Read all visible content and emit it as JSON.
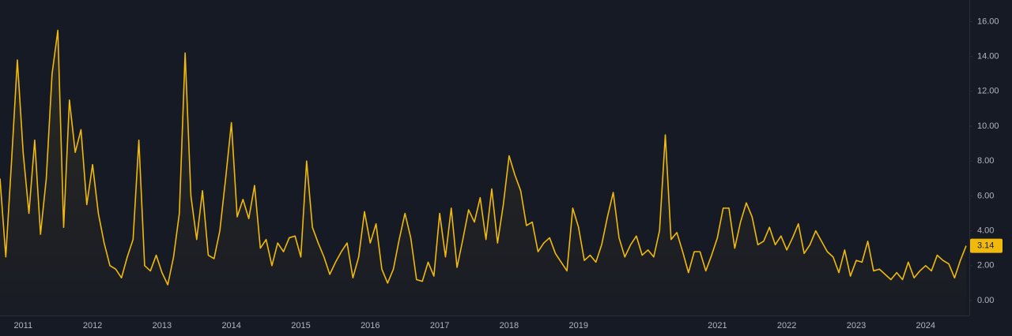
{
  "chart_data": {
    "type": "line",
    "categories": [
      null,
      null,
      null,
      null,
      "2011",
      null,
      null,
      null,
      null,
      null,
      null,
      null,
      null,
      null,
      null,
      null,
      "2012",
      null,
      null,
      null,
      null,
      null,
      null,
      null,
      null,
      null,
      null,
      null,
      "2013",
      null,
      null,
      null,
      null,
      null,
      null,
      null,
      null,
      null,
      null,
      null,
      "2014",
      null,
      null,
      null,
      null,
      null,
      null,
      null,
      null,
      null,
      null,
      null,
      "2015",
      null,
      null,
      null,
      null,
      null,
      null,
      null,
      null,
      null,
      null,
      null,
      "2016",
      null,
      null,
      null,
      null,
      null,
      null,
      null,
      null,
      null,
      null,
      null,
      "2017",
      null,
      null,
      null,
      null,
      null,
      null,
      null,
      null,
      null,
      null,
      null,
      "2018",
      null,
      null,
      null,
      null,
      null,
      null,
      null,
      null,
      null,
      null,
      null,
      "2019",
      null,
      null,
      null,
      null,
      null,
      null,
      null,
      null,
      null,
      null,
      null,
      null,
      null,
      null,
      null,
      null,
      null,
      null,
      null,
      null,
      null,
      null,
      null,
      "2021",
      null,
      null,
      null,
      null,
      null,
      null,
      null,
      null,
      null,
      null,
      null,
      "2022",
      null,
      null,
      null,
      null,
      null,
      null,
      null,
      null,
      null,
      null,
      null,
      "2023",
      null,
      null,
      null,
      null,
      null,
      null,
      null,
      null,
      null,
      null,
      null,
      "2024",
      null,
      null,
      null,
      null,
      null,
      null,
      null
    ],
    "values": [
      7.0,
      2.5,
      8,
      13.8,
      8.5,
      5,
      9.2,
      3.8,
      7,
      13,
      15.5,
      4.2,
      11.5,
      8.5,
      9.8,
      5.5,
      7.8,
      5,
      3.3,
      2,
      1.8,
      1.3,
      2.5,
      3.5,
      9.2,
      2,
      1.7,
      2.6,
      1.6,
      0.9,
      2.5,
      5,
      14.2,
      6,
      3.5,
      6.3,
      2.6,
      2.4,
      4,
      7,
      10.2,
      4.8,
      5.8,
      4.7,
      6.6,
      3,
      3.5,
      2,
      3.3,
      2.8,
      3.6,
      3.7,
      2.5,
      8,
      4.2,
      3.3,
      2.5,
      1.5,
      2.2,
      2.8,
      3.3,
      1.3,
      2.5,
      5.1,
      3.3,
      4.4,
      1.8,
      1,
      1.8,
      3.5,
      5,
      3.6,
      1.2,
      1.1,
      2.2,
      1.4,
      5,
      2.5,
      5.3,
      1.9,
      3.5,
      5.2,
      4.5,
      5.9,
      3.5,
      6.4,
      3.3,
      5.5,
      8.3,
      7.2,
      6.3,
      4.3,
      4.5,
      2.8,
      3.3,
      3.6,
      2.7,
      2.2,
      1.7,
      5.3,
      4.2,
      2.3,
      2.6,
      2.2,
      3.2,
      4.8,
      6.2,
      3.6,
      2.5,
      3.2,
      3.7,
      2.6,
      2.9,
      2.5,
      4,
      9.5,
      3.5,
      3.9,
      2.8,
      1.6,
      2.8,
      2.8,
      1.7,
      2.6,
      3.6,
      5.3,
      5.3,
      3,
      4.5,
      5.6,
      4.8,
      3.2,
      3.4,
      4.2,
      3.2,
      3.7,
      2.9,
      3.6,
      4.4,
      2.7,
      3.2,
      4,
      3.4,
      2.8,
      2.5,
      1.6,
      2.9,
      1.4,
      2.3,
      2.2,
      3.4,
      1.7,
      1.8,
      1.5,
      1.2,
      1.6,
      1.2,
      2.2,
      1.3,
      1.7,
      2,
      1.7,
      2.6,
      2.3,
      2.1,
      1.3,
      2.3,
      3.14
    ],
    "color": "#f0b90b",
    "ylim": [
      -0.86,
      17.24
    ],
    "yticks": [
      {
        "value": 0,
        "label": "0.00"
      },
      {
        "value": 2,
        "label": "2.00"
      },
      {
        "value": 4,
        "label": "4.00"
      },
      {
        "value": 6,
        "label": "6.00"
      },
      {
        "value": 8,
        "label": "8.00"
      },
      {
        "value": 10,
        "label": "10.00"
      },
      {
        "value": 12,
        "label": "12.00"
      },
      {
        "value": 14,
        "label": "14.00"
      },
      {
        "value": 16,
        "label": "16.00"
      }
    ]
  }
}
